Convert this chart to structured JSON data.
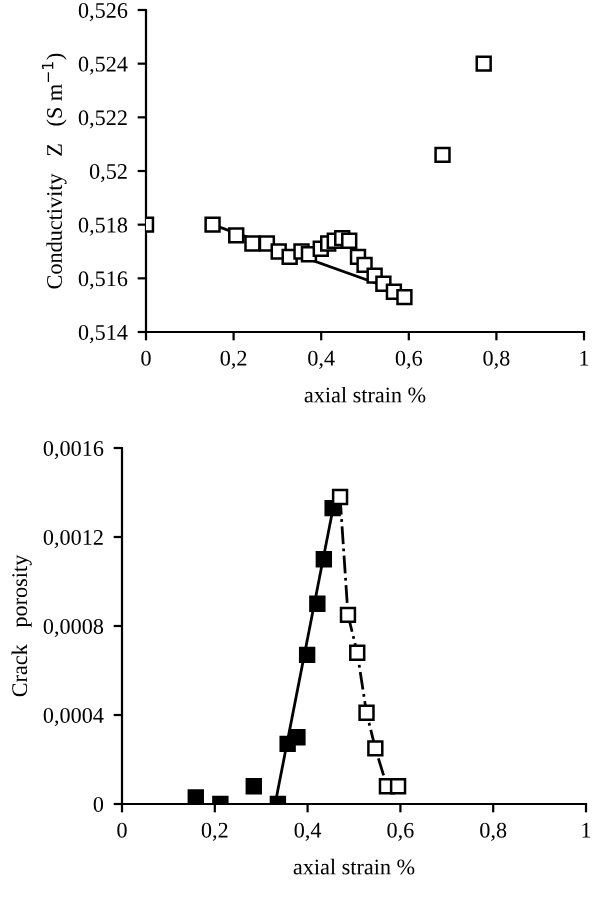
{
  "chart_data": [
    {
      "type": "scatter",
      "ylabel": "Conductivity   Z   (S m$^{−1}$)",
      "xlabel": "axial strain %",
      "xlim": [
        0,
        1
      ],
      "xticks": [
        0,
        {
          "value": 0.2,
          "label": "0,2"
        },
        {
          "value": 0.4,
          "label": "0,4"
        },
        {
          "value": 0.6,
          "label": "0,6"
        },
        {
          "value": 0.8,
          "label": "0,8"
        },
        1
      ],
      "ylim": [
        0.514,
        0.526
      ],
      "yticks": [
        {
          "value": 0.514,
          "label": "0,514"
        },
        {
          "value": 0.516,
          "label": "0,516"
        },
        {
          "value": 0.518,
          "label": "0,518"
        },
        {
          "value": 0.52,
          "label": "0,52"
        },
        {
          "value": 0.522,
          "label": "0,522"
        },
        {
          "value": 0.524,
          "label": "0,524"
        },
        {
          "value": 0.526,
          "label": "0,526"
        }
      ],
      "grid": false,
      "series": [
        {
          "marker": "square",
          "color": "#ffffff",
          "x": [
            0,
            0.152,
            0.206,
            0.243,
            0.276,
            0.303,
            0.328,
            0.355,
            0.372,
            0.399,
            0.416,
            0.431,
            0.448,
            0.464,
            0.484,
            0.499,
            0.522,
            0.542,
            0.566,
            0.59,
            0.677,
            0.771
          ],
          "values": [
            0.518,
            0.518,
            0.5176,
            0.5173,
            0.5173,
            0.517,
            0.5168,
            0.517,
            0.5169,
            0.5171,
            0.5173,
            0.5174,
            0.5175,
            0.5174,
            0.5168,
            0.5165,
            0.5161,
            0.5158,
            0.5155,
            0.5153,
            0.5206,
            0.524
          ]
        },
        {
          "type": "line",
          "color": "#000000",
          "line_style": "solid",
          "x": [
            0.152,
            0.58
          ],
          "values": [
            0.518,
            0.5155
          ]
        }
      ]
    },
    {
      "type": "scatter",
      "ylabel": "Crack   porosity",
      "xlabel": "axial strain %",
      "xlim": [
        0,
        1
      ],
      "xticks": [
        0,
        {
          "value": 0.2,
          "label": "0,2"
        },
        {
          "value": 0.4,
          "label": "0,4"
        },
        {
          "value": 0.6,
          "label": "0,6"
        },
        {
          "value": 0.8,
          "label": "0,8"
        },
        1
      ],
      "ylim": [
        0,
        0.0016
      ],
      "yticks": [
        0,
        {
          "value": 0.0004,
          "label": "0,0004"
        },
        {
          "value": 0.0008,
          "label": "0,0008"
        },
        {
          "value": 0.0012,
          "label": "0,0012"
        },
        {
          "value": 0.0016,
          "label": "0,0016"
        }
      ],
      "grid": false,
      "series": [
        {
          "marker": "square",
          "color": "#000000",
          "x": [
            0.159,
            0.212,
            0.284,
            0.336,
            0.357,
            0.378,
            0.399,
            0.421,
            0.435,
            0.454
          ],
          "values": [
            3e-05,
            0.0,
            8e-05,
            0.0,
            0.00027,
            0.0003,
            0.00067,
            0.0009,
            0.0011,
            0.00133
          ]
        },
        {
          "type": "line",
          "color": "#000000",
          "line_style": "solid",
          "x": [
            0.33,
            0.455
          ],
          "values": [
            0.0,
            0.00133
          ]
        },
        {
          "type": "line",
          "marker": "square",
          "color": "#ffffff",
          "line_style": "dashed",
          "x": [
            0.47,
            0.487,
            0.507,
            0.527,
            0.546,
            0.571,
            0.595
          ],
          "values": [
            0.00138,
            0.00085,
            0.00068,
            0.00041,
            0.00025,
            8e-05,
            8e-05
          ]
        }
      ]
    }
  ]
}
